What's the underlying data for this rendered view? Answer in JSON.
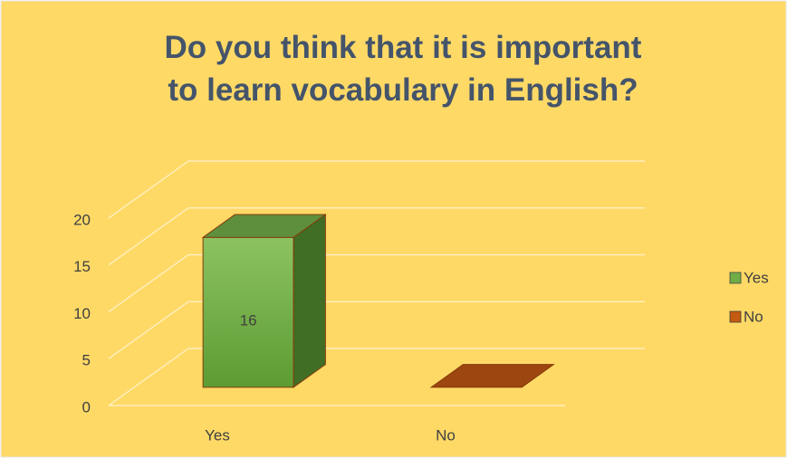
{
  "chart_data": {
    "type": "bar3d",
    "title": "Do you think that it is important to learn vocabulary in English?",
    "categories": [
      "Yes",
      "No"
    ],
    "series": [
      {
        "name": "Yes",
        "color": "#70ad47"
      },
      {
        "name": "No",
        "color": "#c55a11"
      }
    ],
    "values": [
      16,
      0
    ],
    "ylim": [
      0,
      20
    ],
    "yticks": [
      0,
      5,
      10,
      15,
      20
    ],
    "grid": true,
    "legend": "right"
  }
}
